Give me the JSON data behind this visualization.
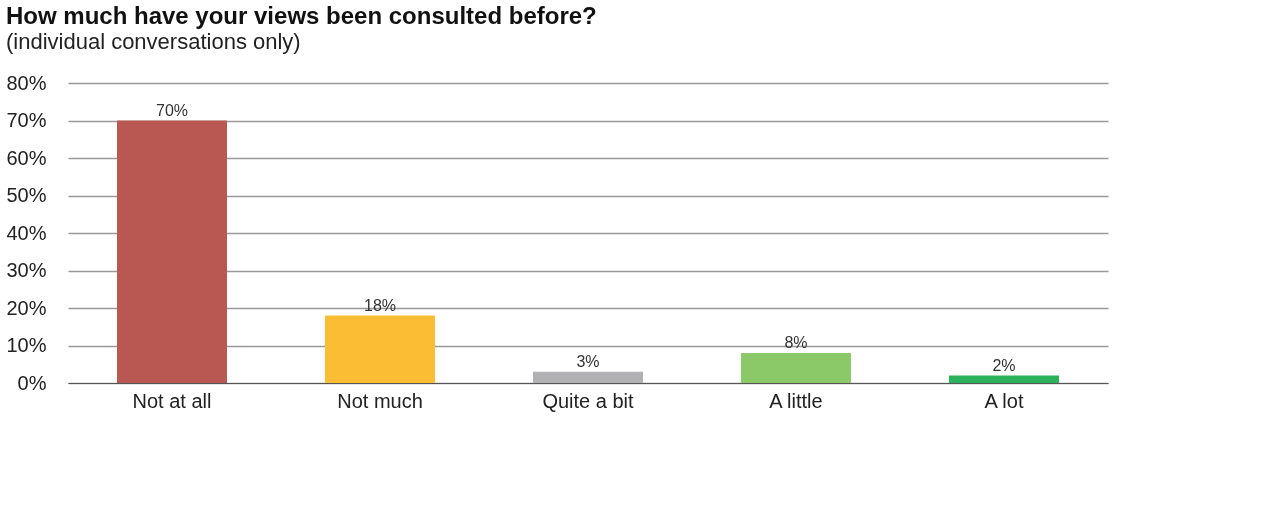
{
  "chart_data": {
    "type": "bar",
    "title": "How much have your views been consulted before?",
    "subtitle": "(individual conversations only)",
    "categories": [
      "Not at all",
      "Not much",
      "Quite a bit",
      "A little",
      "A lot"
    ],
    "values": [
      70,
      18,
      3,
      8,
      2
    ],
    "colors": [
      "#b95753",
      "#fbbd33",
      "#b1b1b3",
      "#8bc867",
      "#2eb15d"
    ],
    "value_labels": [
      "70%",
      "18%",
      "3%",
      "8%",
      "2%"
    ],
    "ylim": [
      0,
      80
    ],
    "yticks": [
      {
        "value": 0,
        "label": "0%"
      },
      {
        "value": 10,
        "label": "10%"
      },
      {
        "value": 20,
        "label": "20%"
      },
      {
        "value": 30,
        "label": "30%"
      },
      {
        "value": 40,
        "label": "40%"
      },
      {
        "value": 50,
        "label": "50%"
      },
      {
        "value": 60,
        "label": "60%"
      },
      {
        "value": 70,
        "label": "70%"
      },
      {
        "value": 80,
        "label": "80%"
      }
    ],
    "grid": "y"
  }
}
